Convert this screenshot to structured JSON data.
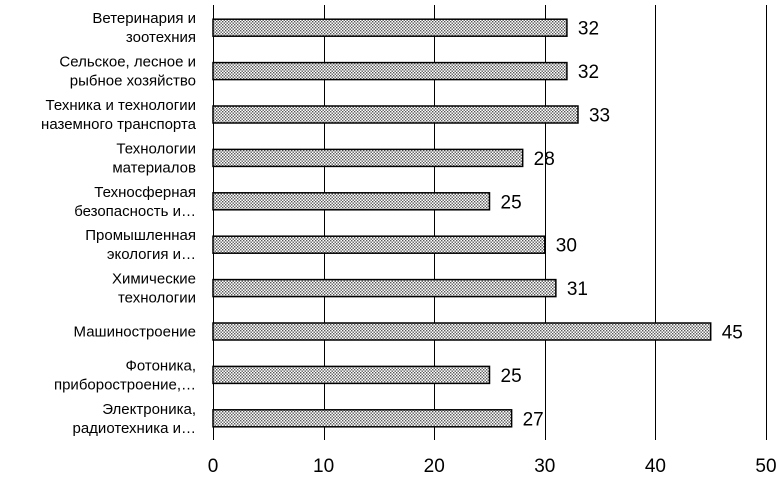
{
  "chart_data": {
    "type": "bar",
    "orientation": "horizontal",
    "categories": [
      [
        "Ветеринария и",
        "зоотехния"
      ],
      [
        "Сельское, лесное и",
        "рыбное хозяйство"
      ],
      [
        "Техника и технологии",
        "наземного транспорта"
      ],
      [
        "Технологии",
        "материалов"
      ],
      [
        "Техносферная",
        "безопасность и…"
      ],
      [
        "Промышленная",
        "экология и…"
      ],
      [
        "Химические",
        "технологии"
      ],
      [
        "Машиностроение"
      ],
      [
        "Фотоника,",
        "приборостроение,…"
      ],
      [
        "Электроника,",
        "радиотехника и…"
      ]
    ],
    "values": [
      32,
      32,
      33,
      28,
      25,
      30,
      31,
      45,
      25,
      27
    ],
    "xlim": [
      0,
      50
    ],
    "ticks": [
      0,
      10,
      20,
      30,
      40,
      50
    ],
    "grid": "vertical",
    "bar_fill": "dotted-gray",
    "colors": {
      "bar_dots": "#555555",
      "bar_stroke": "#000000",
      "grid": "#000000",
      "text": "#000000"
    }
  }
}
